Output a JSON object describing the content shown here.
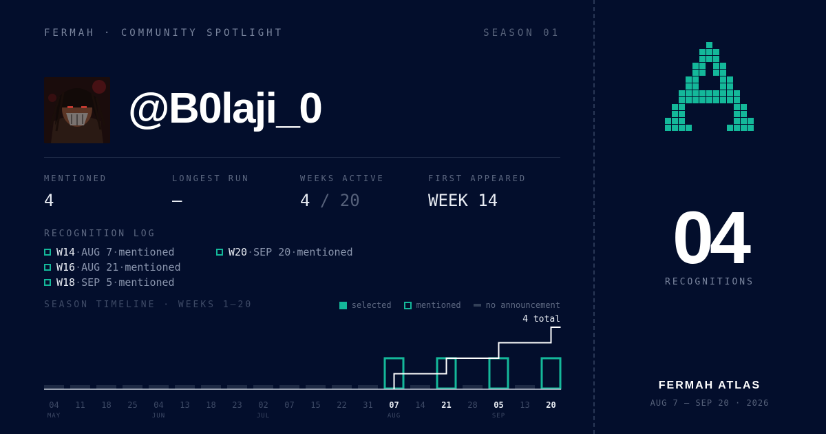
{
  "header": {
    "brand": "FERMAH · COMMUNITY SPOTLIGHT",
    "season": "SEASON 01"
  },
  "profile": {
    "handle": "@B0laji_0",
    "avatar_icon": "avatar-masked-figure"
  },
  "stats": [
    {
      "label": "MENTIONED",
      "value": "4",
      "suffix": ""
    },
    {
      "label": "LONGEST RUN",
      "value": "—",
      "suffix": ""
    },
    {
      "label": "WEEKS ACTIVE",
      "value": "4",
      "suffix": " / 20"
    },
    {
      "label": "FIRST APPEARED",
      "value": "WEEK 14",
      "suffix": ""
    }
  ],
  "log": {
    "title": "RECOGNITION LOG",
    "items": [
      {
        "week": "W14",
        "date": "AUG 7",
        "status": "mentioned"
      },
      {
        "week": "W16",
        "date": "AUG 21",
        "status": "mentioned"
      },
      {
        "week": "W18",
        "date": "SEP 5",
        "status": "mentioned"
      },
      {
        "week": "W20",
        "date": "SEP 20",
        "status": "mentioned"
      }
    ]
  },
  "timeline": {
    "title": "SEASON TIMELINE · WEEKS 1–20",
    "legend": {
      "selected": "selected",
      "mentioned": "mentioned",
      "none": "no announcement"
    },
    "total_label": "4 total"
  },
  "chart_data": {
    "type": "bar",
    "weeks": [
      1,
      2,
      3,
      4,
      5,
      6,
      7,
      8,
      9,
      10,
      11,
      12,
      13,
      14,
      15,
      16,
      17,
      18,
      19,
      20
    ],
    "states": [
      "none",
      "none",
      "none",
      "none",
      "none",
      "none",
      "none",
      "none",
      "none",
      "none",
      "none",
      "none",
      "none",
      "mentioned",
      "none",
      "mentioned",
      "none",
      "mentioned",
      "none",
      "mentioned"
    ],
    "day_labels": [
      "04",
      "11",
      "18",
      "25",
      "04",
      "13",
      "18",
      "23",
      "02",
      "07",
      "15",
      "22",
      "31",
      "07",
      "14",
      "21",
      "28",
      "05",
      "13",
      "20"
    ],
    "month_labels": [
      {
        "week": 1,
        "label": "MAY"
      },
      {
        "week": 5,
        "label": "JUN"
      },
      {
        "week": 9,
        "label": "JUL"
      },
      {
        "week": 14,
        "label": "AUG"
      },
      {
        "week": 18,
        "label": "SEP"
      }
    ],
    "cumulative": [
      0,
      0,
      0,
      0,
      0,
      0,
      0,
      0,
      0,
      0,
      0,
      0,
      0,
      1,
      1,
      2,
      2,
      3,
      3,
      4
    ],
    "total": 4
  },
  "side": {
    "logo_icon": "atlas-pixel-a-logo",
    "count": "04",
    "count_label": "RECOGNITIONS",
    "atlas_title": "FERMAH ATLAS",
    "atlas_dates": "AUG 7 — SEP 20 · 2026"
  },
  "colors": {
    "background": "#030e2c",
    "accent": "#14b89a",
    "muted_bar": "#1e2a45",
    "step_line": "#ffffff"
  }
}
